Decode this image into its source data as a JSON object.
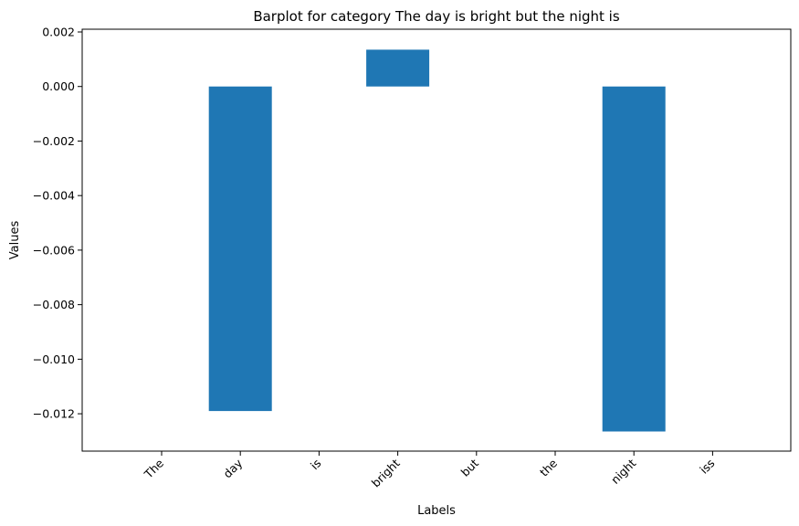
{
  "chart_data": {
    "type": "bar",
    "title": "Barplot for category The day is bright but the night is",
    "xlabel": "Labels",
    "ylabel": "Values",
    "categories": [
      "The",
      "day",
      "is",
      "bright",
      "but",
      "the",
      "night",
      "iss"
    ],
    "values": [
      0,
      -0.0119,
      0,
      0.00135,
      0,
      0,
      -0.01265,
      0
    ],
    "ylim": [
      -0.01337,
      0.0021
    ],
    "yticks": [
      0.002,
      0.0,
      -0.002,
      -0.004,
      -0.006,
      -0.008,
      -0.01,
      -0.012
    ],
    "ytick_labels": [
      "0.002",
      "0.000",
      "−0.002",
      "−0.004",
      "−0.006",
      "−0.008",
      "−0.010",
      "−0.012"
    ],
    "bar_color": "#1f77b4",
    "grid": false,
    "legend": false
  }
}
